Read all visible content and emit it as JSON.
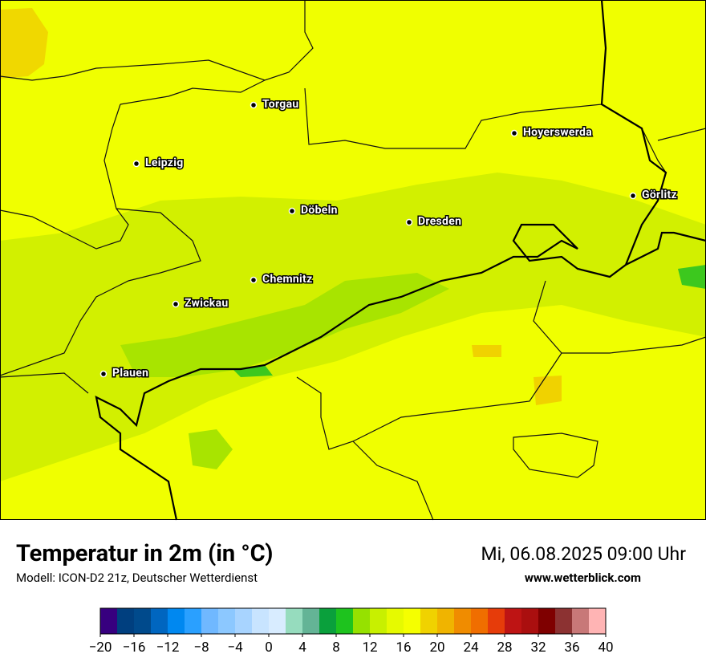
{
  "map": {
    "cities": [
      "Torgau",
      "Hoyerswerda",
      "Leipzig",
      "Görlitz",
      "Döbeln",
      "Dresden",
      "Chemnitz",
      "Zwickau",
      "Plauen"
    ]
  },
  "footer": {
    "title": "Temperatur in 2m (in °C)",
    "subtitle": "Modell: ICON-D2 21z, Deutscher Wetterdienst",
    "date": "Mi, 06.08.2025 09:00 Uhr",
    "website": "www.wetterblick.com"
  },
  "colorbar": {
    "lim": [
      -20,
      40
    ],
    "ticks": [
      {
        "value": -20,
        "label": "−20"
      },
      {
        "value": -16,
        "label": "−16"
      },
      {
        "value": -12,
        "label": "−12"
      },
      {
        "value": -8,
        "label": "−8"
      },
      {
        "value": -4,
        "label": "−4"
      },
      0,
      4,
      8,
      12,
      16,
      20,
      24,
      28,
      32,
      36,
      40
    ],
    "colors": [
      "#37007f",
      "#003f7f",
      "#004a8c",
      "#0066c0",
      "#0088f0",
      "#2aa0ff",
      "#70b8ff",
      "#8cc8ff",
      "#a8d4ff",
      "#c8e4ff",
      "#d8ecff",
      "#96dcbe",
      "#64b496",
      "#0aa03c",
      "#1ec31e",
      "#96e100",
      "#c8f000",
      "#e6fa00",
      "#f5ff00",
      "#f0d200",
      "#f0b400",
      "#f08c00",
      "#f06e00",
      "#e63c0a",
      "#be1414",
      "#aa0f0f",
      "#7f0000",
      "#8c3232",
      "#c87878",
      "#ffb4b4"
    ]
  }
}
